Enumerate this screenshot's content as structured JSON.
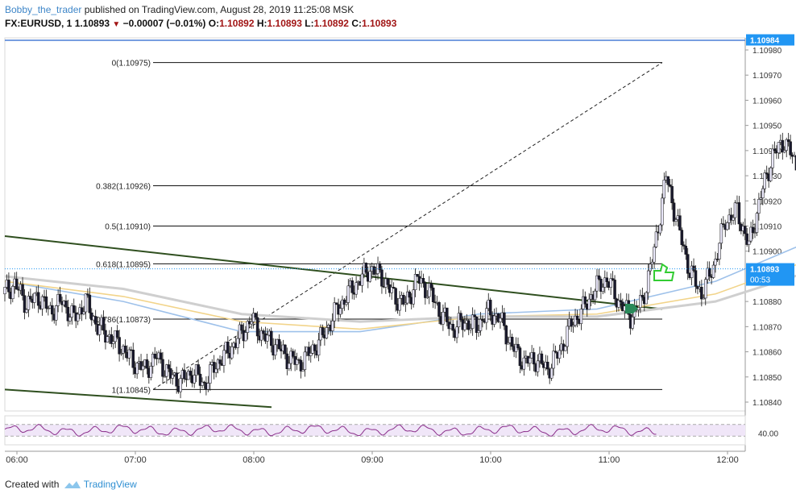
{
  "header": {
    "author": "Bobby_the_trader",
    "published_text": "published on TradingView.com, August 28, 2019 11:25:08 MSK",
    "symbol": "FX:EURUSD, 1",
    "price": "1.10893",
    "change": "−0.00007 (−0.01%)",
    "ohlc": {
      "o_label": "O:",
      "o": "1.10892",
      "h_label": "H:",
      "h": "1.10893",
      "l_label": "L:",
      "l": "1.10892",
      "c_label": "C:",
      "c": "1.10893"
    }
  },
  "footer": {
    "created_with": "Created with",
    "brand": "TradingView"
  },
  "colors": {
    "bull_candle": "#e8e6f8",
    "bear_candle": "#1a1a2e",
    "candle_border": "#111111",
    "ma_blue": "#9ec1ea",
    "ma_yellow": "#f2d48a",
    "ma_grey": "#cfcfcf",
    "trend": "#2f4f1f",
    "rsi": "#8b2f8b",
    "rsi_band": "#f0e6f8",
    "price_tag": "#2196f3",
    "hline": "#4a7fd6",
    "arrow": "#2a8a5a",
    "thumb": "#33cc33"
  },
  "chart_data": {
    "type": "candlestick",
    "symbol": "FX:EURUSD",
    "timeframe": "1",
    "ylim": [
      1.10836,
      1.10985
    ],
    "y_ticks": [
      "1.10980",
      "1.10970",
      "1.10960",
      "1.10950",
      "1.10940",
      "1.10930",
      "1.10920",
      "1.10910",
      "1.10900",
      "1.10880",
      "1.10870",
      "1.10860",
      "1.10850",
      "1.10840"
    ],
    "x_ticks": [
      "06:00",
      "07:00",
      "08:00",
      "09:00",
      "10:00",
      "11:00",
      "12:00"
    ],
    "horizontal_line": {
      "label": "1.10984",
      "value": 1.10984
    },
    "last_price": {
      "label": "1.10893",
      "value": 1.10893,
      "countdown": "00:53"
    },
    "fibonacci": {
      "levels": [
        {
          "label": "0(1.10975)",
          "value": 1.10975
        },
        {
          "label": "0.382(1.10926)",
          "value": 1.10926
        },
        {
          "label": "0.5(1.10910)",
          "value": 1.1091
        },
        {
          "label": "0.618(1.10895)",
          "value": 1.10895
        },
        {
          "label": "0.786(1.10873)",
          "value": 1.10873
        },
        {
          "label": "1(1.10845)",
          "value": 1.10845
        }
      ],
      "anchor_low": {
        "time": "07:15",
        "value": 1.10845
      },
      "anchor_high": {
        "time": "11:30",
        "value": 1.10975
      }
    },
    "trendlines": [
      {
        "from": {
          "time": "06:00",
          "value": 1.10906
        },
        "to": {
          "time": "11:30",
          "value": 1.10877
        }
      },
      {
        "from": {
          "time": "06:00",
          "value": 1.10845
        },
        "to": {
          "time": "08:10",
          "value": 1.10838
        }
      }
    ],
    "prices": [
      [
        0,
        1.10883
      ],
      [
        6,
        1.10887
      ],
      [
        12,
        1.10879
      ],
      [
        18,
        1.10882
      ],
      [
        24,
        1.10876
      ],
      [
        30,
        1.1088
      ],
      [
        36,
        1.10873
      ],
      [
        42,
        1.1088
      ],
      [
        48,
        1.1087
      ],
      [
        54,
        1.10866
      ],
      [
        60,
        1.10862
      ],
      [
        66,
        1.10856
      ],
      [
        72,
        1.10853
      ],
      [
        78,
        1.10858
      ],
      [
        84,
        1.10851
      ],
      [
        90,
        1.10848
      ],
      [
        96,
        1.10852
      ],
      [
        102,
        1.10847
      ],
      [
        108,
        1.10855
      ],
      [
        114,
        1.1086
      ],
      [
        120,
        1.10866
      ],
      [
        126,
        1.10873
      ],
      [
        132,
        1.10866
      ],
      [
        138,
        1.10863
      ],
      [
        144,
        1.10858
      ],
      [
        150,
        1.10855
      ],
      [
        156,
        1.1086
      ],
      [
        162,
        1.10866
      ],
      [
        168,
        1.10875
      ],
      [
        174,
        1.10882
      ],
      [
        180,
        1.10888
      ],
      [
        186,
        1.10893
      ],
      [
        192,
        1.1089
      ],
      [
        198,
        1.10882
      ],
      [
        204,
        1.10879
      ],
      [
        210,
        1.10889
      ],
      [
        216,
        1.10884
      ],
      [
        222,
        1.10875
      ],
      [
        228,
        1.10869
      ],
      [
        234,
        1.10872
      ],
      [
        240,
        1.1087
      ],
      [
        246,
        1.10876
      ],
      [
        252,
        1.10873
      ],
      [
        258,
        1.10862
      ],
      [
        264,
        1.10856
      ],
      [
        270,
        1.10857
      ],
      [
        276,
        1.10853
      ],
      [
        282,
        1.1086
      ],
      [
        288,
        1.10871
      ],
      [
        294,
        1.10877
      ],
      [
        300,
        1.10885
      ],
      [
        306,
        1.10889
      ],
      [
        312,
        1.1088
      ],
      [
        318,
        1.10874
      ],
      [
        324,
        1.1088
      ],
      [
        330,
        1.109
      ],
      [
        336,
        1.1093
      ],
      [
        342,
        1.1091
      ],
      [
        348,
        1.10892
      ],
      [
        354,
        1.10883
      ],
      [
        360,
        1.10894
      ],
      [
        366,
        1.10912
      ],
      [
        372,
        1.10916
      ],
      [
        378,
        1.10902
      ],
      [
        384,
        1.10922
      ],
      [
        390,
        1.10938
      ],
      [
        396,
        1.10944
      ],
      [
        402,
        1.10934
      ],
      [
        408,
        1.10955
      ],
      [
        414,
        1.10968
      ],
      [
        420,
        1.10975
      ],
      [
        426,
        1.1095
      ],
      [
        432,
        1.10923
      ],
      [
        438,
        1.10905
      ],
      [
        444,
        1.10885
      ],
      [
        450,
        1.10878
      ],
      [
        456,
        1.10874
      ],
      [
        462,
        1.10885
      ],
      [
        466,
        1.10893
      ]
    ],
    "moving_averages": [
      {
        "name": "",
        "color": "#9ec1ea",
        "values": [
          [
            0,
            1.10888
          ],
          [
            60,
            1.1088
          ],
          [
            120,
            1.10868
          ],
          [
            180,
            1.10868
          ],
          [
            240,
            1.10875
          ],
          [
            300,
            1.10877
          ],
          [
            360,
            1.10888
          ],
          [
            420,
            1.10908
          ],
          [
            456,
            1.10905
          ]
        ]
      },
      {
        "name": "",
        "color": "#f2d48a",
        "values": [
          [
            0,
            1.10888
          ],
          [
            60,
            1.10882
          ],
          [
            120,
            1.10872
          ],
          [
            180,
            1.10869
          ],
          [
            240,
            1.10874
          ],
          [
            300,
            1.10875
          ],
          [
            360,
            1.10883
          ],
          [
            420,
            1.109
          ],
          [
            456,
            1.10898
          ]
        ]
      },
      {
        "name": "",
        "color": "#cfcfcf",
        "values": [
          [
            0,
            1.1089
          ],
          [
            60,
            1.10885
          ],
          [
            120,
            1.10875
          ],
          [
            180,
            1.10872
          ],
          [
            240,
            1.10874
          ],
          [
            300,
            1.10874
          ],
          [
            360,
            1.1088
          ],
          [
            420,
            1.10895
          ],
          [
            456,
            1.10894
          ]
        ]
      }
    ],
    "rsi": {
      "level_label": "40.00",
      "upper": 70,
      "lower": 30,
      "level": 40
    }
  }
}
